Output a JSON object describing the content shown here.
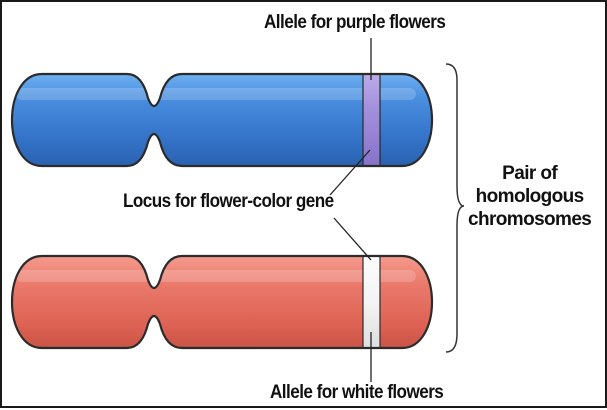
{
  "labels": {
    "allele_purple": "Allele for purple flowers",
    "locus": "Locus for flower-color gene",
    "allele_white": "Allele for white flowers",
    "pair_line1": "Pair of",
    "pair_line2": "homologous",
    "pair_line3": "chromosomes"
  },
  "colors": {
    "chromosome_top": "#3c7ed3",
    "chromosome_bottom": "#e2695d",
    "allele_purple_band": "#9b86d6",
    "allele_white_band": "#f1f1f1",
    "outline": "#2b2b2b"
  }
}
